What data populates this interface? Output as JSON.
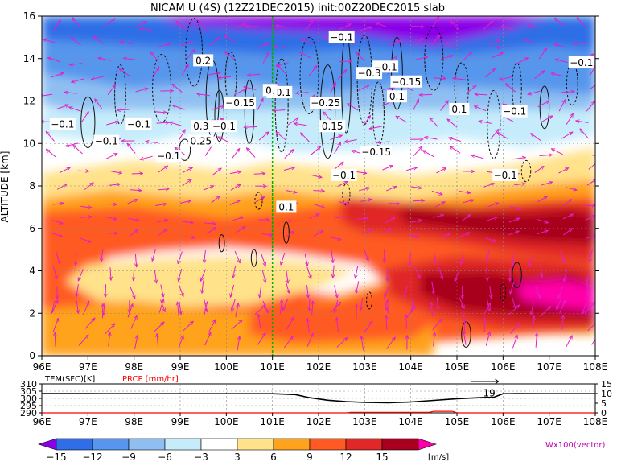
{
  "chart_data": [
    {
      "type": "heatmap",
      "title": "NICAM U (4S) (12Z21DEC2015) init:00Z20DEC2015 slab",
      "xlabel": "",
      "ylabel": "ALTITUDE [km]",
      "xlim": [
        96,
        108
      ],
      "ylim": [
        0,
        16
      ],
      "x_ticks": [
        96,
        97,
        98,
        99,
        100,
        101,
        102,
        103,
        104,
        105,
        106,
        107,
        108
      ],
      "x_tick_labels": [
        "96E",
        "97E",
        "98E",
        "99E",
        "100E",
        "101E",
        "102E",
        "103E",
        "104E",
        "105E",
        "106E",
        "107E",
        "108E"
      ],
      "y_ticks": [
        0,
        2,
        4,
        6,
        8,
        10,
        12,
        14,
        16
      ],
      "y_tick_labels": [
        "0",
        "2",
        "4",
        "6",
        "8",
        "10",
        "12",
        "14",
        "16"
      ],
      "grid": true,
      "marker_line_x": 101,
      "colorbar": {
        "unit": "[m/s]",
        "levels": [
          -15,
          -12,
          -9,
          -6,
          -3,
          3,
          6,
          9,
          12,
          15
        ],
        "labels": [
          "−15",
          "−12",
          "−9",
          "−6",
          "−3",
          "3",
          "6",
          "9",
          "12",
          "15"
        ],
        "colors": [
          "#8a00e6",
          "#2f6ee6",
          "#5796ec",
          "#8fbff2",
          "#c6ecfb",
          "#ffffff",
          "#ffe28a",
          "#ffa21c",
          "#ff5a21",
          "#e02828",
          "#a8001e",
          "#ff00a8"
        ]
      },
      "wind_legend": "Wx100(vector)",
      "contour_labels": [
        {
          "x": 96.45,
          "y": 10.9,
          "text": "−0.1"
        },
        {
          "x": 97.4,
          "y": 10.1,
          "text": "−0.1"
        },
        {
          "x": 98.1,
          "y": 10.9,
          "text": "−0.1"
        },
        {
          "x": 99.5,
          "y": 13.9,
          "text": "0.2"
        },
        {
          "x": 99.45,
          "y": 10.8,
          "text": "0.3"
        },
        {
          "x": 99.45,
          "y": 10.1,
          "text": "0.25"
        },
        {
          "x": 98.75,
          "y": 9.4,
          "text": "−0.1"
        },
        {
          "x": 99.95,
          "y": 10.8,
          "text": "−0.1"
        },
        {
          "x": 100.3,
          "y": 11.9,
          "text": "−0.15"
        },
        {
          "x": 101.15,
          "y": 12.4,
          "text": "−0.1"
        },
        {
          "x": 100.95,
          "y": 12.5,
          "text": "0."
        },
        {
          "x": 102.15,
          "y": 11.9,
          "text": "−0.25"
        },
        {
          "x": 102.3,
          "y": 10.8,
          "text": "0.15"
        },
        {
          "x": 103.25,
          "y": 9.6,
          "text": "−0.15"
        },
        {
          "x": 102.55,
          "y": 8.5,
          "text": "−0.1"
        },
        {
          "x": 101.3,
          "y": 7.0,
          "text": "0.1"
        },
        {
          "x": 102.5,
          "y": 15.0,
          "text": "−0.1"
        },
        {
          "x": 103.45,
          "y": 13.6,
          "text": "−0.1"
        },
        {
          "x": 103.1,
          "y": 13.3,
          "text": "−0.3"
        },
        {
          "x": 103.9,
          "y": 12.9,
          "text": "−0.15"
        },
        {
          "x": 103.7,
          "y": 12.2,
          "text": "0.1"
        },
        {
          "x": 105.05,
          "y": 11.6,
          "text": "0.1"
        },
        {
          "x": 106.25,
          "y": 11.5,
          "text": "−0.1"
        },
        {
          "x": 107.7,
          "y": 13.8,
          "text": "−0.1"
        },
        {
          "x": 106.05,
          "y": 8.5,
          "text": "−0.1"
        }
      ]
    },
    {
      "type": "line",
      "xlabel": "",
      "ylabel_left": "TEM(SFC)[K]",
      "ylabel_right": "PRCP [mm/hr]",
      "xlim": [
        96,
        108
      ],
      "ylim_left": [
        290,
        310
      ],
      "ylim_right": [
        0,
        15
      ],
      "left_ticks": [
        290,
        295,
        300,
        305,
        310
      ],
      "left_tick_labels": [
        "290",
        "295",
        "300",
        "305",
        "310"
      ],
      "right_ticks": [
        0,
        5,
        10,
        15
      ],
      "right_tick_labels": [
        "0",
        "5",
        "10",
        "15"
      ],
      "x_tick_labels": [
        "96E",
        "97E",
        "98E",
        "99E",
        "100E",
        "101E",
        "102E",
        "103E",
        "104E",
        "105E",
        "106E",
        "107E",
        "108E"
      ],
      "series": [
        {
          "name": "TEM(SFC)[K]",
          "color": "#000000",
          "x": [
            96,
            96.5,
            97,
            98,
            99,
            100,
            101,
            101.5,
            101.8,
            102.2,
            102.6,
            103,
            103.5,
            104,
            104.5,
            105,
            105.5,
            105.8,
            106,
            106.3,
            107,
            108
          ],
          "y": [
            303.3,
            303.3,
            303.3,
            303.2,
            303.2,
            303.2,
            303.2,
            302.6,
            300.5,
            298.7,
            297.8,
            297.2,
            297.0,
            297.5,
            298.6,
            299.8,
            300.5,
            300.8,
            303.2,
            303.3,
            303.2,
            303.2
          ]
        },
        {
          "name": "PRCP [mm/hr]",
          "color": "#ff0000",
          "x": [
            96,
            102.6,
            102.7,
            104.4,
            104.5,
            104.9,
            105,
            108
          ],
          "y": [
            0,
            0,
            0.3,
            0.3,
            0.8,
            0.8,
            0,
            0
          ]
        }
      ],
      "annotations": [
        {
          "x": 105.7,
          "y": 303.7,
          "text": "19"
        }
      ]
    }
  ]
}
